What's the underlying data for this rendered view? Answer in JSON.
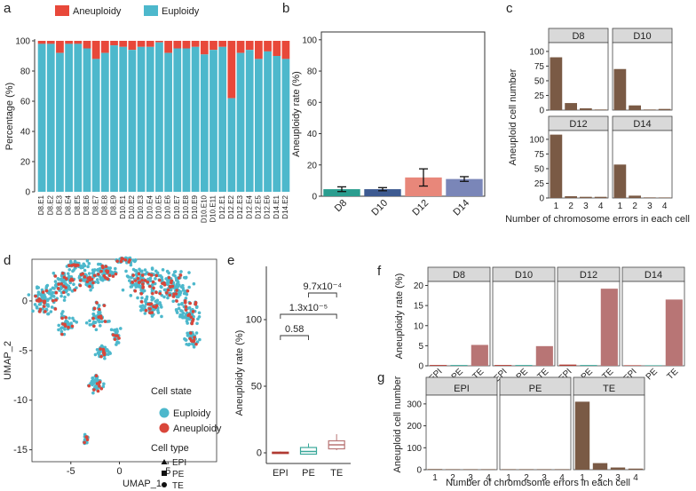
{
  "panel_letters": {
    "a": "a",
    "b": "b",
    "c": "c",
    "d": "d",
    "e": "e",
    "f": "f",
    "g": "g"
  },
  "colors": {
    "aneuploidy": "#e8483a",
    "euploidy": "#4db8cc",
    "d8": "#2a9d8f",
    "d10": "#3d5a91",
    "d12": "#e8877a",
    "d14": "#7a86b8",
    "brown": "#7a5a45",
    "epi": "#b03a32",
    "pe": "#3aa89a",
    "te": "#b87575",
    "strip": "#d9d9d9",
    "umap_eu": "#4db8cc",
    "umap_an": "#d9463a"
  },
  "chart_data": [
    {
      "id": "a",
      "type": "bar",
      "stacked": true,
      "ylabel": "Percentage (%)",
      "legend": [
        "Aneuploidy",
        "Euploidy"
      ],
      "yticks": [
        0,
        20,
        40,
        60,
        80,
        100
      ],
      "categories": [
        "D8.E1",
        "D8.E2",
        "D8.E3",
        "D8.E4",
        "D8.E5",
        "D8.E6",
        "D8.E7",
        "D8.E8",
        "D8.E9",
        "D10.E1",
        "D10.E2",
        "D10.E3",
        "D10.E4",
        "D10.E5",
        "D10.E6",
        "D10.E7",
        "D10.E8",
        "D10.E9",
        "D10.E10",
        "D10.E11",
        "D12.E1",
        "D12.E2",
        "D12.E3",
        "D12.E4",
        "D12.E5",
        "D12.E6",
        "D14.E1",
        "D14.E2"
      ],
      "euploidy": [
        98,
        98,
        92,
        98,
        98,
        95,
        88,
        92,
        97,
        96,
        94,
        96,
        96,
        99,
        92,
        95,
        95,
        96,
        91,
        94,
        96,
        62,
        92,
        94,
        88,
        93,
        90,
        88
      ]
    },
    {
      "id": "b",
      "type": "bar",
      "ylabel": "Aneuploidy rate (%)",
      "categories": [
        "D8",
        "D10",
        "D12",
        "D14"
      ],
      "values": [
        4.5,
        4.5,
        12,
        11
      ],
      "errors": [
        1.5,
        1,
        5.5,
        1.5
      ],
      "yticks": [
        0,
        20,
        40,
        60,
        80,
        100
      ],
      "ylim": [
        0,
        105
      ]
    },
    {
      "id": "c",
      "type": "bar",
      "facets": true,
      "ylabel": "Aneuploid cell number",
      "xlabel": "Number of chromosome errors in each cell",
      "xticks": [
        "1",
        "2",
        "3",
        "4"
      ],
      "yticks": [
        0,
        25,
        50,
        75,
        100
      ],
      "ylim": [
        0,
        115
      ],
      "panels": [
        {
          "label": "D8",
          "values": [
            90,
            12,
            3,
            1
          ]
        },
        {
          "label": "D10",
          "values": [
            70,
            8,
            1,
            2
          ]
        },
        {
          "label": "D12",
          "values": [
            108,
            3,
            2,
            2
          ]
        },
        {
          "label": "D14",
          "values": [
            57,
            4,
            1,
            0
          ]
        }
      ]
    },
    {
      "id": "d",
      "type": "scatter",
      "xlabel": "UMAP_1",
      "ylabel": "UMAP_2",
      "xticks": [
        -5,
        0,
        5
      ],
      "yticks": [
        0,
        -5,
        -10,
        -15
      ],
      "legend_state_title": "Cell state",
      "legend_state": [
        "Euploidy",
        "Aneuploidy"
      ],
      "legend_type_title": "Cell type",
      "legend_type": [
        "EPI",
        "PE",
        "TE"
      ]
    },
    {
      "id": "e",
      "type": "box",
      "ylabel": "Aneuploidy rate (%)",
      "categories": [
        "EPI",
        "PE",
        "TE"
      ],
      "yticks": [
        0,
        50,
        100
      ],
      "ylim": [
        -8,
        140
      ],
      "boxes": [
        {
          "min": 0,
          "q1": 0,
          "median": 0,
          "q3": 0.5,
          "max": 1
        },
        {
          "min": -1,
          "q1": -1,
          "median": 1,
          "q3": 4,
          "max": 7
        },
        {
          "min": 2,
          "q1": 3,
          "median": 6,
          "q3": 9,
          "max": 14
        }
      ],
      "pvalues": [
        {
          "label": "0.58",
          "from": 0,
          "to": 1
        },
        {
          "label": "1.3x10⁻⁵",
          "from": 0,
          "to": 2
        },
        {
          "label": "9.7x10⁻⁴",
          "from": 1,
          "to": 2
        }
      ]
    },
    {
      "id": "f",
      "type": "bar",
      "facets": true,
      "ylabel": "Aneuploidy rate (%)",
      "categories": [
        "EPI",
        "PE",
        "TE"
      ],
      "yticks": [
        0,
        5,
        10,
        15,
        20
      ],
      "ylim": [
        0,
        21
      ],
      "panels": [
        {
          "label": "D8",
          "values": [
            0.2,
            0.2,
            5.2
          ]
        },
        {
          "label": "D10",
          "values": [
            0.2,
            0.2,
            4.9
          ]
        },
        {
          "label": "D12",
          "values": [
            0.3,
            0.2,
            19.2
          ]
        },
        {
          "label": "D14",
          "values": [
            0,
            0,
            16.5
          ]
        }
      ]
    },
    {
      "id": "g",
      "type": "bar",
      "facets": true,
      "ylabel": "Aneuploid cell number",
      "xlabel": "Number of chromosome errors in each cell",
      "xticks": [
        "1",
        "2",
        "3",
        "4"
      ],
      "yticks": [
        0,
        100,
        200,
        300
      ],
      "ylim": [
        0,
        340
      ],
      "panels": [
        {
          "label": "EPI",
          "values": [
            3,
            0,
            0,
            0
          ]
        },
        {
          "label": "PE",
          "values": [
            2,
            1,
            0,
            0
          ]
        },
        {
          "label": "TE",
          "values": [
            310,
            30,
            10,
            5
          ]
        }
      ]
    }
  ]
}
